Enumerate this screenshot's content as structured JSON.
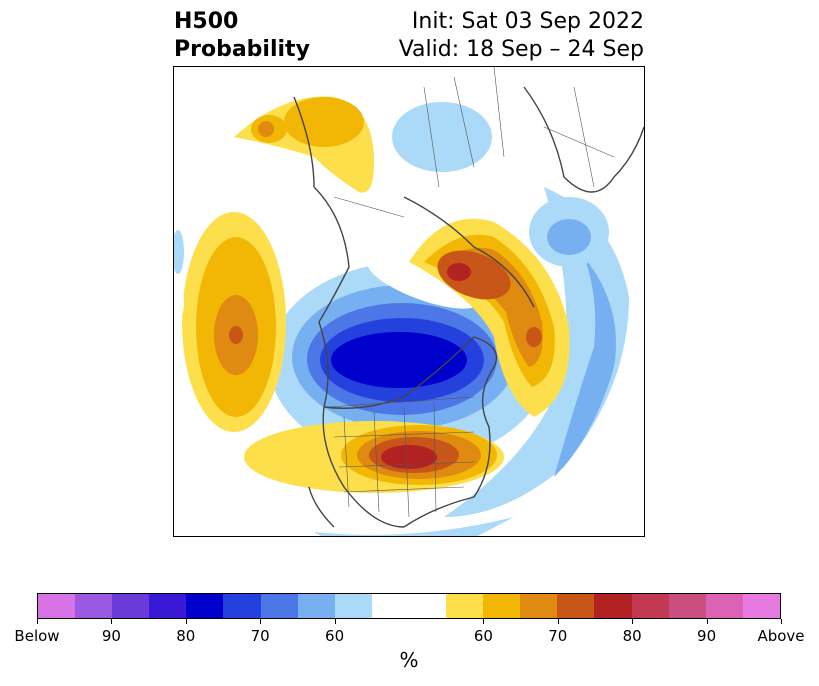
{
  "title": {
    "left_line1": "H500",
    "left_line2": "Probability",
    "right_line1": "Init: Sat 03 Sep 2022",
    "right_line2": "Valid: 18 Sep – 24 Sep"
  },
  "colorbar": {
    "colors": [
      "#d873e6",
      "#9b58e2",
      "#6b3bd9",
      "#3a19d6",
      "#0000cc",
      "#2441dd",
      "#4d77e6",
      "#76b0f0",
      "#abdaf8",
      "#ffffff",
      "#ffffff",
      "#fddf4c",
      "#f2b705",
      "#df8a10",
      "#c85618",
      "#b22222",
      "#c13a52",
      "#cb4e80",
      "#dc62b4",
      "#e77ae0"
    ],
    "labels": [
      "Below",
      "90",
      "80",
      "70",
      "60",
      "60",
      "70",
      "80",
      "90",
      "Above"
    ],
    "unit": "%"
  },
  "map": {
    "description_free": true,
    "fill_palette": {
      "warm": [
        "#fddf4c",
        "#f2b705",
        "#df8a10",
        "#c85618",
        "#b22222"
      ],
      "cool": [
        "#abdaf8",
        "#76b0f0",
        "#4d77e6",
        "#2441dd",
        "#0000cc"
      ]
    }
  }
}
